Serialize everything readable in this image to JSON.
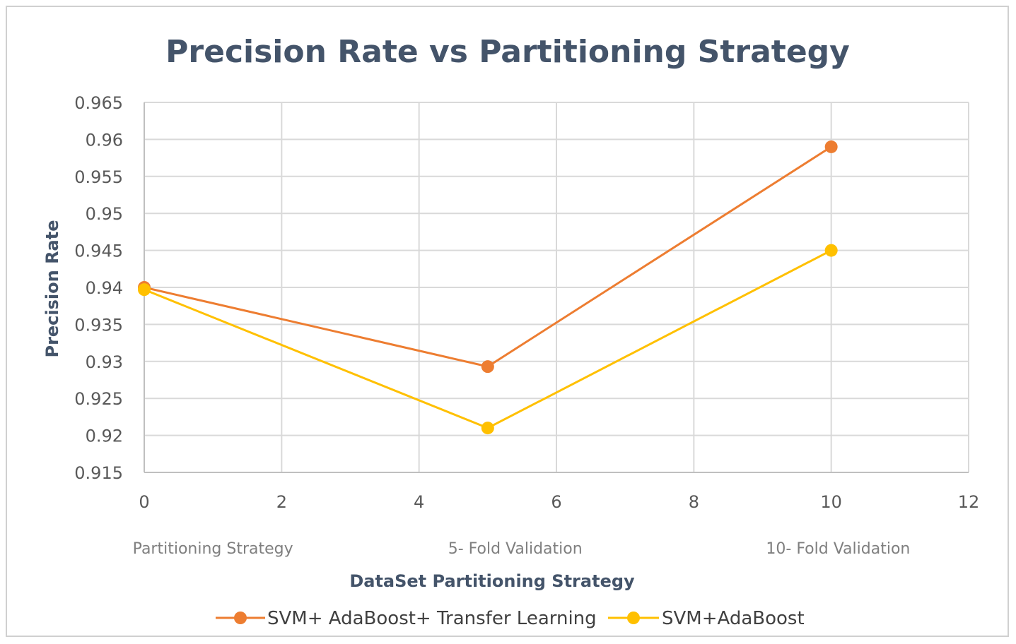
{
  "chart_data": {
    "type": "line",
    "title": "Precision Rate vs Partitioning Strategy",
    "xlabel": "DataSet Partitioning Strategy",
    "ylabel": "Precision Rate",
    "xlim": [
      0,
      12
    ],
    "ylim": [
      0.915,
      0.965
    ],
    "x_ticks": [
      "0",
      "2",
      "4",
      "6",
      "8",
      "10",
      "12"
    ],
    "y_ticks": [
      "0.915",
      "0.92",
      "0.925",
      "0.93",
      "0.935",
      "0.94",
      "0.945",
      "0.95",
      "0.955",
      "0.96",
      "0.965"
    ],
    "category_labels": [
      {
        "label": "Partitioning Strategy",
        "x": 1
      },
      {
        "label": "5- Fold Validation",
        "x": 5.4
      },
      {
        "label": "10- Fold Validation",
        "x": 10.1
      }
    ],
    "grid": true,
    "legend_position": "bottom",
    "series": [
      {
        "name": "SVM+ AdaBoost+ Transfer Learning",
        "color": "#ed7d31",
        "x": [
          0,
          5,
          10
        ],
        "y": [
          0.94,
          0.9293,
          0.959
        ]
      },
      {
        "name": "SVM+AdaBoost",
        "color": "#ffc000",
        "x": [
          0,
          5,
          10
        ],
        "y": [
          0.9397,
          0.921,
          0.945
        ]
      }
    ]
  }
}
